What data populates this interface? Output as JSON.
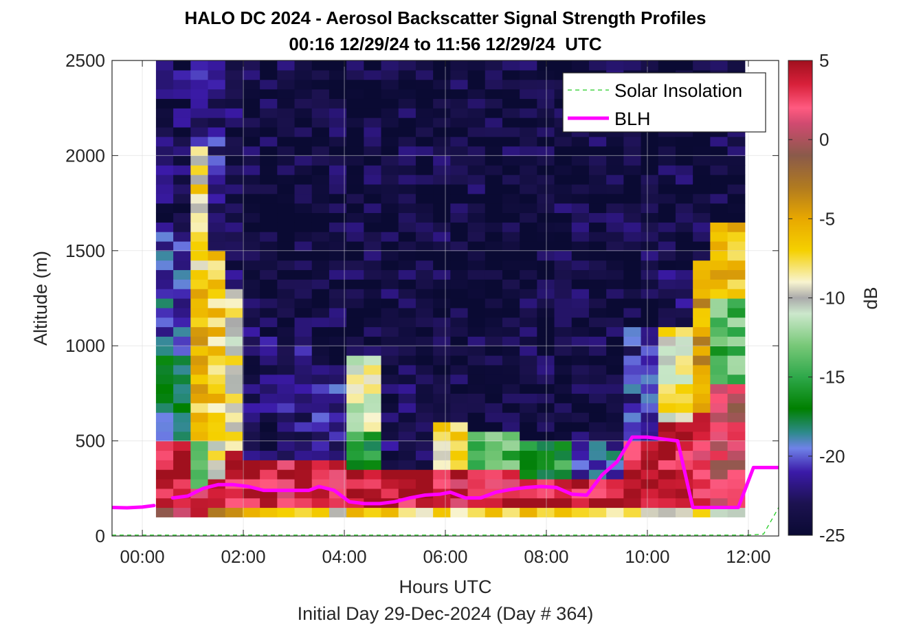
{
  "chart_data": {
    "type": "heatmap",
    "title": "HALO DC 2024 - Aerosol Backscatter Signal Strength Profiles",
    "subtitle": "00:16 12/29/24 to 11:56 12/29/24  UTC",
    "xlabel": "Hours UTC",
    "xlabel2": "Initial Day 29-Dec-2024 (Day # 364)",
    "ylabel": "Altitude (m)",
    "colorbar_label": "dB",
    "xlim": [
      -0.6,
      12.6
    ],
    "ylim": [
      0,
      2500
    ],
    "clim": [
      -25,
      5
    ],
    "x_ticks": [
      0,
      2,
      4,
      6,
      8,
      10,
      12
    ],
    "x_tick_labels": [
      "00:00",
      "02:00",
      "04:00",
      "06:00",
      "08:00",
      "10:00",
      "12:00"
    ],
    "y_ticks": [
      0,
      500,
      1000,
      1500,
      2000,
      2500
    ],
    "y_tick_labels": [
      "0",
      "500",
      "1000",
      "1500",
      "2000",
      "2500"
    ],
    "colorbar_ticks": [
      5,
      0,
      -5,
      -10,
      -15,
      -20,
      -25
    ],
    "colorbar_tick_labels": [
      "5",
      "0",
      "-5",
      "-10",
      "-15",
      "-20",
      "-25"
    ],
    "grid": true,
    "legend_position": "top-right",
    "time_start_hours": 0.27,
    "time_end_hours": 11.93,
    "altitude_bottom_m": 100,
    "altitude_top_m": 2500,
    "profile_count": 34,
    "column_profiles": [
      {
        "t": 0.7,
        "segments": [
          [
            100,
            150,
            1
          ],
          [
            150,
            500,
            4
          ],
          [
            500,
            1000,
            -18
          ],
          [
            1000,
            1600,
            -20
          ],
          [
            1600,
            2500,
            -23
          ]
        ]
      },
      {
        "t": 1.1,
        "segments": [
          [
            100,
            250,
            3
          ],
          [
            250,
            500,
            -14
          ],
          [
            500,
            1400,
            -6
          ],
          [
            1400,
            2050,
            -8
          ],
          [
            2050,
            2500,
            -22
          ]
        ]
      },
      {
        "t": 1.5,
        "segments": [
          [
            100,
            150,
            -4
          ],
          [
            150,
            300,
            4
          ],
          [
            300,
            600,
            -9
          ],
          [
            600,
            1500,
            -7
          ],
          [
            1500,
            2500,
            -22
          ]
        ]
      },
      {
        "t": 1.9,
        "segments": [
          [
            100,
            150,
            -4
          ],
          [
            150,
            450,
            4
          ],
          [
            450,
            1300,
            -9
          ],
          [
            1300,
            2500,
            -23
          ]
        ]
      },
      {
        "t": 2.3,
        "segments": [
          [
            100,
            150,
            -7
          ],
          [
            150,
            400,
            4
          ],
          [
            400,
            1200,
            -23
          ],
          [
            1200,
            2500,
            -24
          ]
        ]
      },
      {
        "t": 3.0,
        "segments": [
          [
            100,
            150,
            -8
          ],
          [
            150,
            400,
            3
          ],
          [
            400,
            1000,
            -22
          ],
          [
            1000,
            2500,
            -24
          ]
        ]
      },
      {
        "t": 3.8,
        "segments": [
          [
            100,
            150,
            -8
          ],
          [
            150,
            400,
            3
          ],
          [
            400,
            900,
            -21
          ],
          [
            900,
            2500,
            -24
          ]
        ]
      },
      {
        "t": 4.5,
        "segments": [
          [
            100,
            150,
            -7
          ],
          [
            150,
            350,
            4
          ],
          [
            350,
            550,
            -16
          ],
          [
            550,
            950,
            -10
          ],
          [
            950,
            2500,
            -24
          ]
        ]
      },
      {
        "t": 5.2,
        "segments": [
          [
            100,
            150,
            -7
          ],
          [
            150,
            350,
            4
          ],
          [
            350,
            900,
            -23
          ],
          [
            900,
            2500,
            -24
          ]
        ]
      },
      {
        "t": 6.0,
        "segments": [
          [
            100,
            150,
            -7
          ],
          [
            150,
            350,
            3
          ],
          [
            350,
            600,
            -8
          ],
          [
            600,
            2500,
            -24
          ]
        ]
      },
      {
        "t": 7.0,
        "segments": [
          [
            100,
            150,
            -8
          ],
          [
            150,
            350,
            3
          ],
          [
            350,
            550,
            -14
          ],
          [
            550,
            2500,
            -24
          ]
        ]
      },
      {
        "t": 8.0,
        "segments": [
          [
            100,
            150,
            -7
          ],
          [
            150,
            300,
            4
          ],
          [
            300,
            500,
            -16
          ],
          [
            500,
            2500,
            -24
          ]
        ]
      },
      {
        "t": 9.0,
        "segments": [
          [
            100,
            150,
            -7
          ],
          [
            150,
            300,
            4
          ],
          [
            300,
            500,
            -20
          ],
          [
            500,
            2500,
            -24
          ]
        ]
      },
      {
        "t": 9.8,
        "segments": [
          [
            100,
            150,
            -9
          ],
          [
            150,
            500,
            4
          ],
          [
            500,
            1100,
            -21
          ],
          [
            1100,
            2500,
            -24
          ]
        ]
      },
      {
        "t": 10.5,
        "segments": [
          [
            100,
            150,
            -9
          ],
          [
            150,
            600,
            4
          ],
          [
            600,
            1100,
            -9
          ],
          [
            1100,
            1400,
            -23
          ],
          [
            1400,
            2500,
            -24
          ]
        ]
      },
      {
        "t": 11.1,
        "segments": [
          [
            100,
            150,
            -9
          ],
          [
            150,
            650,
            2
          ],
          [
            650,
            1450,
            -5
          ],
          [
            1450,
            2500,
            -24
          ]
        ]
      },
      {
        "t": 11.7,
        "segments": [
          [
            100,
            150,
            -11
          ],
          [
            150,
            800,
            1
          ],
          [
            800,
            1250,
            -14
          ],
          [
            1250,
            1650,
            -6
          ],
          [
            1650,
            2500,
            -24
          ]
        ]
      }
    ],
    "series": [
      {
        "name": "Solar Insolation",
        "style": "dashed",
        "color": "#22cc22",
        "x": [
          -0.6,
          12.0,
          12.3,
          12.6
        ],
        "y": [
          5,
          5,
          10,
          150
        ]
      },
      {
        "name": "BLH",
        "style": "solid",
        "color": "#ff00ff",
        "segments": [
          {
            "x": [
              -0.6,
              -0.3,
              0.0,
              0.23
            ],
            "y": [
              150,
              148,
              152,
              160
            ]
          },
          {
            "x": [
              0.6,
              0.9,
              1.2,
              1.5,
              1.8,
              2.1,
              2.4,
              2.7,
              3.0,
              3.3,
              3.5,
              3.8,
              4.1,
              4.4,
              4.7,
              5.0,
              5.3,
              5.6,
              5.9,
              6.1,
              6.4,
              6.7,
              7.0,
              7.3,
              7.6,
              7.9,
              8.2,
              8.5,
              8.8,
              9.1,
              9.4,
              9.7,
              10.0,
              10.3,
              10.6,
              10.9,
              11.2,
              11.5,
              11.8,
              12.1,
              12.6
            ],
            "y": [
              200,
              210,
              250,
              270,
              270,
              260,
              240,
              240,
              240,
              240,
              260,
              240,
              180,
              170,
              170,
              180,
              200,
              215,
              220,
              230,
              200,
              200,
              230,
              245,
              255,
              260,
              255,
              220,
              215,
              320,
              390,
              520,
              520,
              510,
              500,
              150,
              150,
              150,
              150,
              360,
              360
            ]
          }
        ]
      }
    ],
    "colormap": [
      {
        "v": -25,
        "color": "#0a0a33"
      },
      {
        "v": -23,
        "color": "#1c1250"
      },
      {
        "v": -21,
        "color": "#3b1aa8"
      },
      {
        "v": -19.5,
        "color": "#6f82e8"
      },
      {
        "v": -18.5,
        "color": "#2d8a8a"
      },
      {
        "v": -17,
        "color": "#008000"
      },
      {
        "v": -15,
        "color": "#2ea84a"
      },
      {
        "v": -13,
        "color": "#78c878"
      },
      {
        "v": -11,
        "color": "#cce8cc"
      },
      {
        "v": -10,
        "color": "#aaaaaa"
      },
      {
        "v": -9,
        "color": "#f8f4d0"
      },
      {
        "v": -7,
        "color": "#f5d000"
      },
      {
        "v": -5,
        "color": "#e8a800"
      },
      {
        "v": -3,
        "color": "#b07a20"
      },
      {
        "v": -1,
        "color": "#8a5a4a"
      },
      {
        "v": 1,
        "color": "#d04a70"
      },
      {
        "v": 2,
        "color": "#ff5a80"
      },
      {
        "v": 3.5,
        "color": "#d8203a"
      },
      {
        "v": 5,
        "color": "#a0101e"
      }
    ]
  }
}
